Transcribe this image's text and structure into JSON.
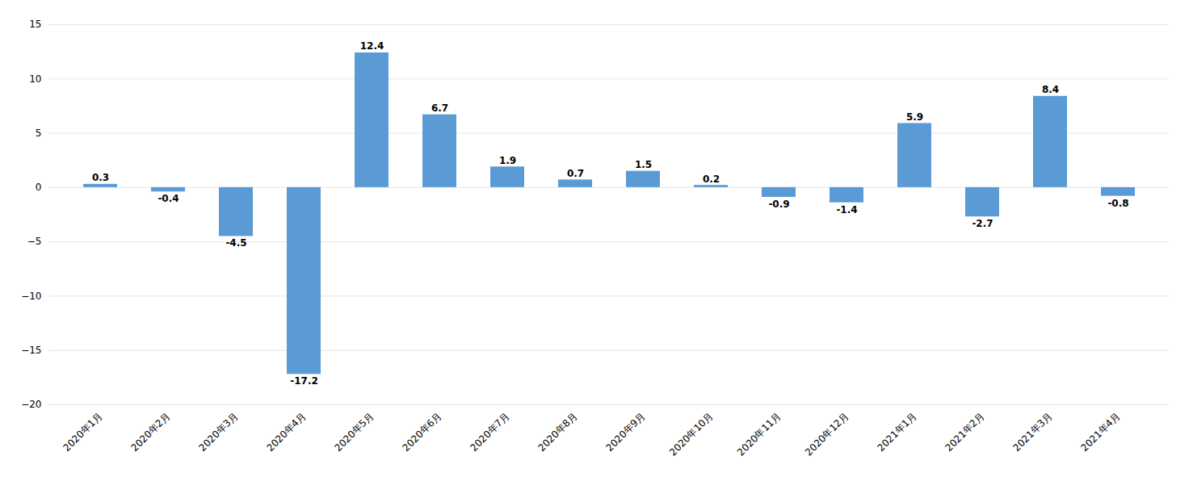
{
  "chart_data": {
    "type": "bar",
    "categories": [
      "2020年1月",
      "2020年2月",
      "2020年3月",
      "2020年4月",
      "2020年5月",
      "2020年6月",
      "2020年7月",
      "2020年8月",
      "2020年9月",
      "2020年10月",
      "2020年11月",
      "2020年12月",
      "2021年1月",
      "2021年2月",
      "2021年3月",
      "2021年4月"
    ],
    "values": [
      0.3,
      -0.4,
      -4.5,
      -17.2,
      12.4,
      6.7,
      1.9,
      0.7,
      1.5,
      0.2,
      -0.9,
      -1.4,
      5.9,
      -2.7,
      8.4,
      -0.8
    ],
    "color": "#5B9BD5",
    "ylim": [
      -20,
      15
    ],
    "yticks": [
      -20,
      -15,
      -10,
      -5,
      0,
      5,
      10,
      15
    ],
    "grid": true,
    "data_labels": true
  }
}
